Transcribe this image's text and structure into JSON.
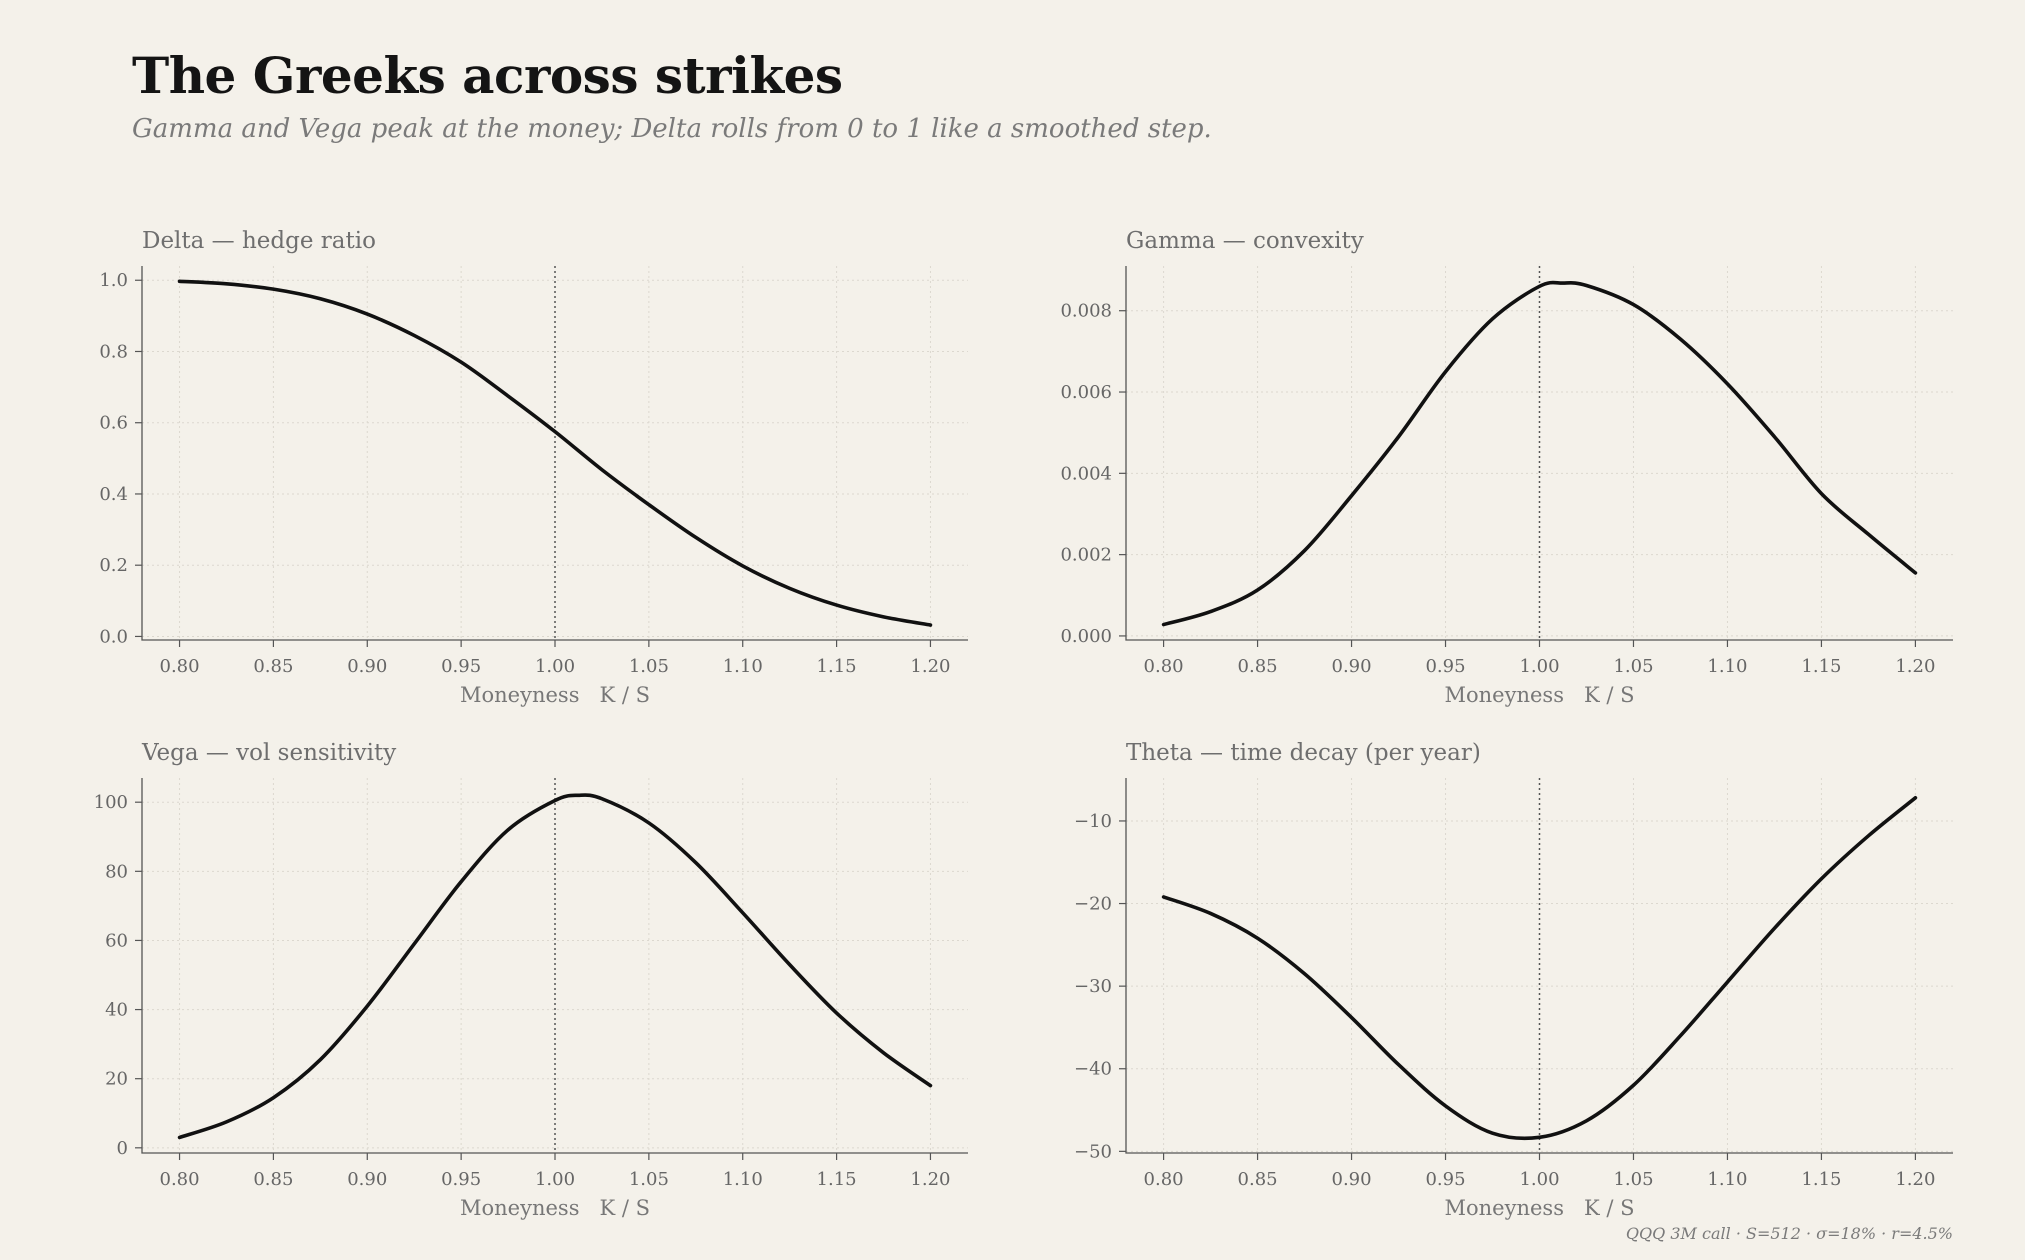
{
  "header": {
    "title": "The Greeks across strikes",
    "subtitle": "Gamma and Vega peak at the money; Delta rolls from 0 to 1 like a smoothed step."
  },
  "footer": "QQQ 3M call  ·  S=512  ·  σ=18%  ·  r=4.5%",
  "colors": {
    "background": "#f4f1ea",
    "line": "#111111",
    "text_muted": "#7a7a7a"
  },
  "chart_data": [
    {
      "type": "line",
      "title": "Delta  —  hedge ratio",
      "xlabel": "Moneyness   K / S",
      "ylabel": "",
      "xlim": [
        0.78,
        1.22
      ],
      "ylim": [
        -0.01,
        1.04
      ],
      "xticks": [
        0.8,
        0.85,
        0.9,
        0.95,
        1.0,
        1.05,
        1.1,
        1.15,
        1.2
      ],
      "xtick_labels": [
        "0.80",
        "0.85",
        "0.90",
        "0.95",
        "1.00",
        "1.05",
        "1.10",
        "1.15",
        "1.20"
      ],
      "yticks": [
        0.0,
        0.2,
        0.4,
        0.6,
        0.8,
        1.0
      ],
      "ytick_labels": [
        "0.0",
        "0.2",
        "0.4",
        "0.6",
        "0.8",
        "1.0"
      ],
      "vline": 1.0,
      "grid": true,
      "x": [
        0.8,
        0.825,
        0.85,
        0.875,
        0.9,
        0.925,
        0.95,
        0.975,
        1.0,
        1.025,
        1.05,
        1.075,
        1.1,
        1.125,
        1.15,
        1.175,
        1.2
      ],
      "y": [
        0.997,
        0.99,
        0.975,
        0.948,
        0.905,
        0.845,
        0.77,
        0.675,
        0.575,
        0.468,
        0.37,
        0.278,
        0.198,
        0.135,
        0.088,
        0.055,
        0.032
      ]
    },
    {
      "type": "line",
      "title": "Gamma  —  convexity",
      "xlabel": "Moneyness   K / S",
      "ylabel": "",
      "xlim": [
        0.78,
        1.22
      ],
      "ylim": [
        -0.0001,
        0.0091
      ],
      "xticks": [
        0.8,
        0.85,
        0.9,
        0.95,
        1.0,
        1.05,
        1.1,
        1.15,
        1.2
      ],
      "xtick_labels": [
        "0.80",
        "0.85",
        "0.90",
        "0.95",
        "1.00",
        "1.05",
        "1.10",
        "1.15",
        "1.20"
      ],
      "yticks": [
        0.0,
        0.002,
        0.004,
        0.006,
        0.008
      ],
      "ytick_labels": [
        "0.000",
        "0.002",
        "0.004",
        "0.006",
        "0.008"
      ],
      "vline": 1.0,
      "grid": true,
      "x": [
        0.8,
        0.825,
        0.85,
        0.875,
        0.9,
        0.925,
        0.95,
        0.975,
        1.0,
        1.0125,
        1.025,
        1.05,
        1.075,
        1.1,
        1.125,
        1.15,
        1.175,
        1.2
      ],
      "y": [
        0.00028,
        0.0006,
        0.00113,
        0.0021,
        0.00345,
        0.0049,
        0.0065,
        0.0078,
        0.0086,
        0.00868,
        0.00862,
        0.00815,
        0.0073,
        0.0062,
        0.0049,
        0.0035,
        0.0025,
        0.00155
      ]
    },
    {
      "type": "line",
      "title": "Vega  —  vol sensitivity",
      "xlabel": "Moneyness   K / S",
      "ylabel": "",
      "xlim": [
        0.78,
        1.22
      ],
      "ylim": [
        -1.5,
        107
      ],
      "xticks": [
        0.8,
        0.85,
        0.9,
        0.95,
        1.0,
        1.05,
        1.1,
        1.15,
        1.2
      ],
      "xtick_labels": [
        "0.80",
        "0.85",
        "0.90",
        "0.95",
        "1.00",
        "1.05",
        "1.10",
        "1.15",
        "1.20"
      ],
      "yticks": [
        0,
        20,
        40,
        60,
        80,
        100
      ],
      "ytick_labels": [
        "0",
        "20",
        "40",
        "60",
        "80",
        "100"
      ],
      "vline": 1.0,
      "grid": true,
      "x": [
        0.8,
        0.825,
        0.85,
        0.875,
        0.9,
        0.925,
        0.95,
        0.975,
        1.0,
        1.0125,
        1.025,
        1.05,
        1.075,
        1.1,
        1.125,
        1.15,
        1.175,
        1.2
      ],
      "y": [
        3,
        7.5,
        14.5,
        25.5,
        41,
        59,
        77,
        92,
        100.5,
        102,
        101,
        94,
        82.5,
        68,
        53,
        39,
        27.5,
        18
      ]
    },
    {
      "type": "line",
      "title": "Theta  —  time decay (per year)",
      "xlabel": "Moneyness   K / S",
      "ylabel": "",
      "xlim": [
        0.78,
        1.22
      ],
      "ylim": [
        -50.2,
        -4.8
      ],
      "xticks": [
        0.8,
        0.85,
        0.9,
        0.95,
        1.0,
        1.05,
        1.1,
        1.15,
        1.2
      ],
      "xtick_labels": [
        "0.80",
        "0.85",
        "0.90",
        "0.95",
        "1.00",
        "1.05",
        "1.10",
        "1.15",
        "1.20"
      ],
      "yticks": [
        -50,
        -40,
        -30,
        -20,
        -10
      ],
      "ytick_labels": [
        "−50",
        "−40",
        "−30",
        "−20",
        "−10"
      ],
      "vline": 1.0,
      "grid": true,
      "x": [
        0.8,
        0.825,
        0.85,
        0.875,
        0.9,
        0.925,
        0.95,
        0.975,
        1.0,
        1.025,
        1.05,
        1.075,
        1.1,
        1.125,
        1.15,
        1.175,
        1.2
      ],
      "y": [
        -19.2,
        -21.2,
        -24.2,
        -28.5,
        -33.8,
        -39.5,
        -44.5,
        -47.8,
        -48.3,
        -46.3,
        -42,
        -36,
        -29.5,
        -23,
        -17,
        -11.8,
        -7.2
      ]
    }
  ]
}
